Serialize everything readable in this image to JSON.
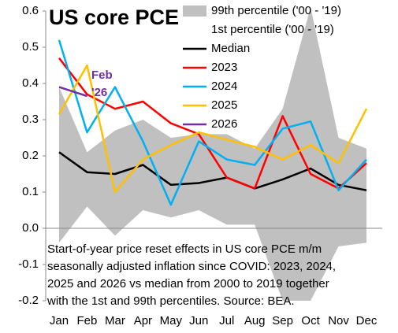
{
  "chart_data": {
    "type": "line",
    "title": "US core PCE",
    "categories": [
      "Jan",
      "Feb",
      "Mar",
      "Apr",
      "May",
      "Jun",
      "Jul",
      "Aug",
      "Sep",
      "Oct",
      "Nov",
      "Dec"
    ],
    "ylim": [
      -0.2,
      0.6
    ],
    "yticks": [
      -0.2,
      -0.1,
      {
        "value": 0,
        "label": "0.0"
      },
      0.1,
      0.2,
      0.3,
      0.4,
      0.5,
      0.6
    ],
    "band": {
      "upper_name": "99th percentile ('00 - '19)",
      "lower_name": "1st percentile ('00 - '19)",
      "color": "#c0c0c0",
      "upper": [
        0.39,
        0.21,
        0.27,
        0.3,
        0.25,
        0.26,
        0.26,
        0.22,
        0.33,
        0.61,
        0.25,
        0.22
      ],
      "lower": [
        -0.04,
        0.06,
        -0.02,
        0.05,
        0.03,
        0.05,
        0.01,
        0.01,
        -0.2,
        -0.2,
        -0.05,
        -0.04
      ]
    },
    "series": [
      {
        "name": "Median",
        "color": "#000000",
        "values": [
          0.21,
          0.155,
          0.15,
          0.175,
          0.12,
          0.125,
          0.14,
          0.11,
          0.135,
          0.165,
          0.12,
          0.105
        ]
      },
      {
        "name": "2023",
        "color": "#ff0000",
        "values": [
          0.47,
          0.37,
          0.33,
          0.35,
          0.29,
          0.26,
          0.14,
          0.11,
          0.31,
          0.15,
          0.11,
          0.18
        ]
      },
      {
        "name": "2024",
        "color": "#00b0f0",
        "values": [
          0.52,
          0.265,
          0.39,
          0.24,
          0.065,
          0.24,
          0.19,
          0.175,
          0.275,
          0.295,
          0.105,
          0.19
        ]
      },
      {
        "name": "2025",
        "color": "#ffc000",
        "values": [
          0.315,
          0.45,
          0.1,
          0.19,
          0.23,
          0.265,
          0.245,
          0.225,
          0.19,
          0.23,
          0.18,
          0.33
        ]
      },
      {
        "name": "2026",
        "color": "#7030a0",
        "values": [
          0.39,
          0.365,
          null,
          null,
          null,
          null,
          null,
          null,
          null,
          null,
          null,
          null
        ]
      }
    ],
    "annotation": [
      "Feb",
      "'26"
    ],
    "caption": [
      "Start-of-year price reset effects in US core PCE m/m",
      "seasonally adjusted inflation since COVID: 2023, 2024,",
      "2025 and 2026 vs median from 2000 to 2019 together",
      "with the 1st and 99th percentiles. Source: BEA."
    ]
  }
}
